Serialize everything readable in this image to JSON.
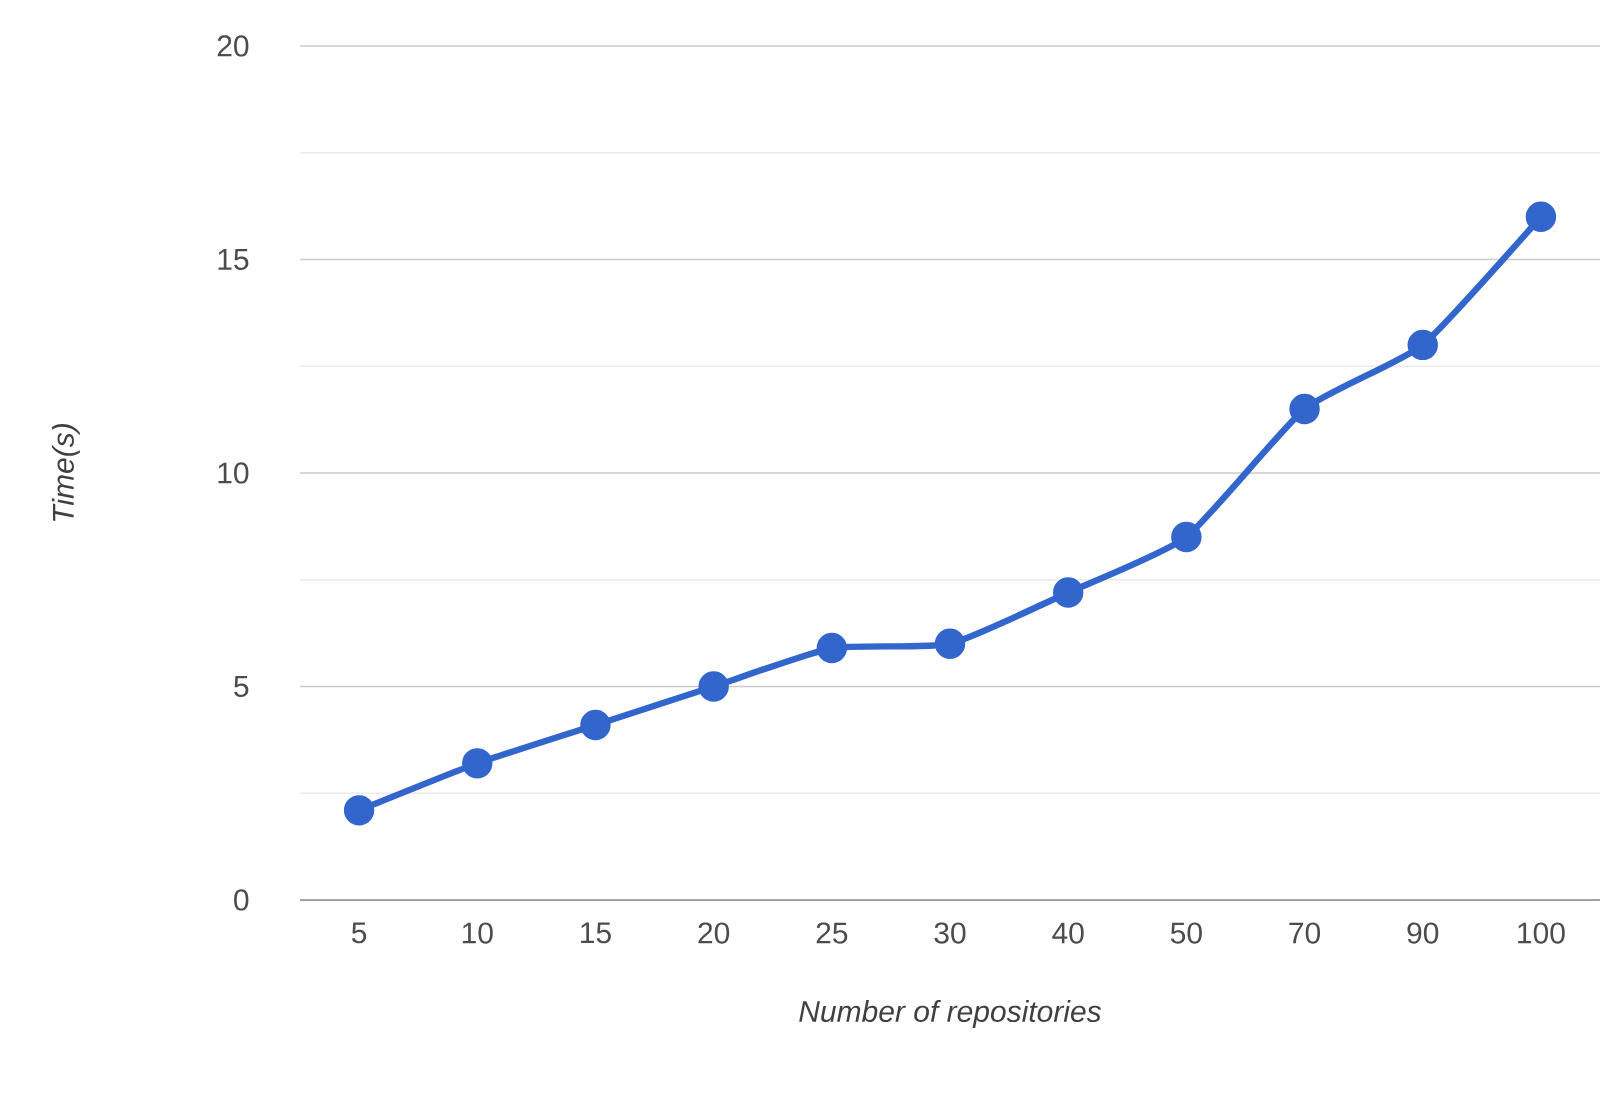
{
  "chart_data": {
    "type": "line",
    "xlabel": "Number of repositories",
    "ylabel": "Time(s)",
    "categories": [
      "5",
      "10",
      "15",
      "20",
      "25",
      "30",
      "40",
      "50",
      "70",
      "90",
      "100"
    ],
    "series": [
      {
        "color": "#3366cc",
        "values": [
          2.1,
          3.2,
          4.1,
          5.0,
          5.9,
          6.0,
          7.2,
          8.5,
          11.5,
          13.0,
          16.0
        ]
      }
    ],
    "ylim": [
      0,
      20
    ],
    "yticks": [
      0,
      {
        "value": 2.5,
        "label": null
      },
      5,
      {
        "value": 7.5,
        "label": null
      },
      10,
      {
        "value": 12.5,
        "label": null
      },
      15,
      {
        "value": 17.5,
        "label": null
      },
      20
    ],
    "grid": "y",
    "marker": "circle",
    "line_style": "solid"
  }
}
